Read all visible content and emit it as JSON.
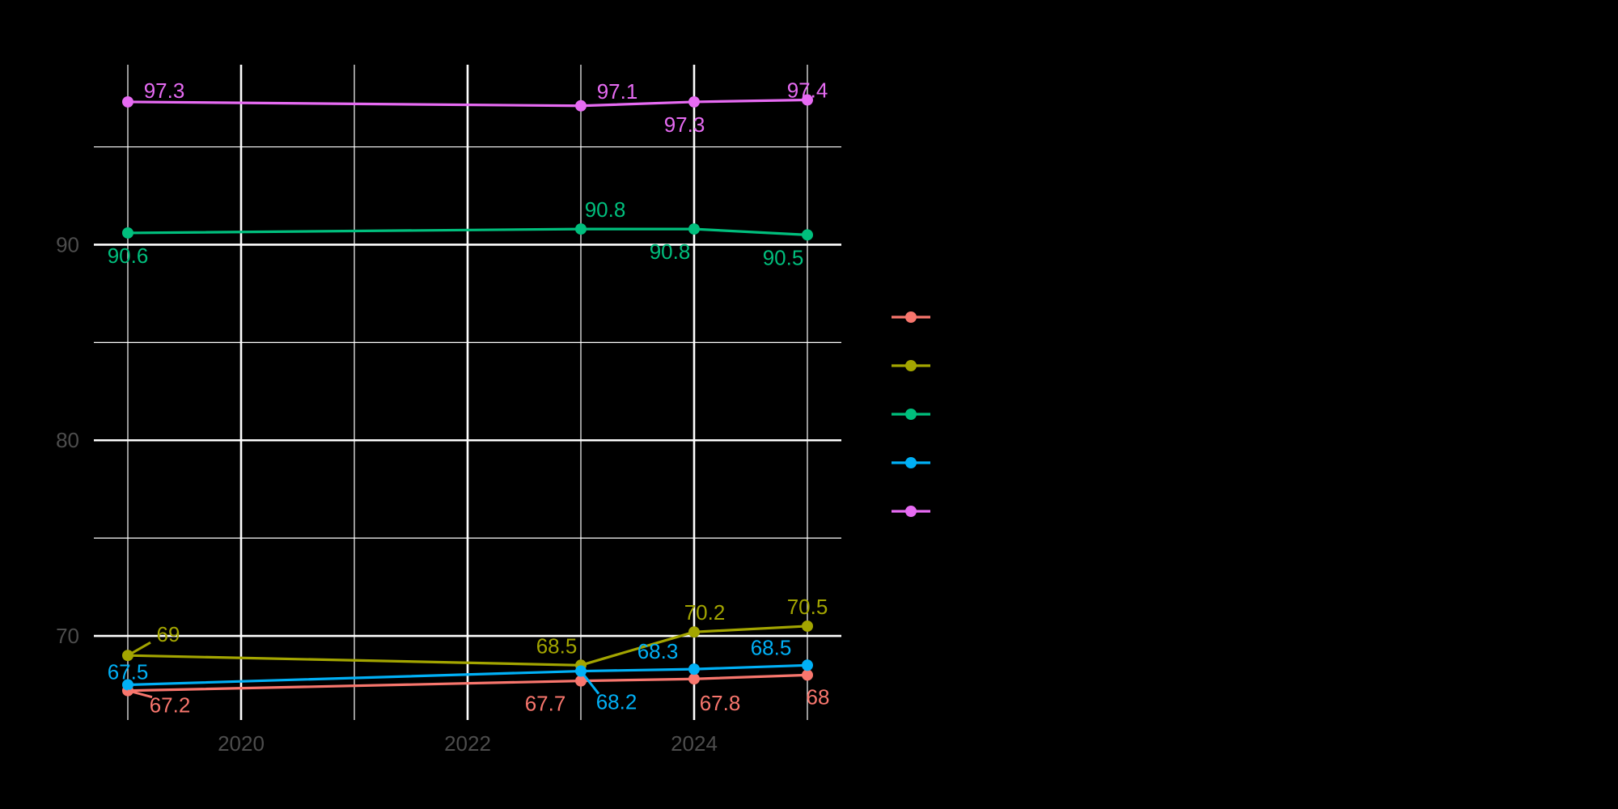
{
  "chart_data": {
    "type": "line",
    "title": "",
    "xlabel": "",
    "ylabel": "",
    "x": [
      2019,
      2023,
      2024,
      2025
    ],
    "xlim": [
      2018.7,
      2025.3
    ],
    "ylim": [
      65.7,
      99.2
    ],
    "x_ticks": [
      2020,
      2022,
      2024
    ],
    "x_tick_labels": [
      "2020",
      "2022",
      "2024"
    ],
    "x_minor_ticks": [
      2019,
      2021,
      2023,
      2025
    ],
    "y_ticks": [
      70,
      80,
      90
    ],
    "y_tick_labels": [
      "70",
      "80",
      "90"
    ],
    "y_minor_ticks": [
      75,
      85,
      95
    ],
    "grid": true,
    "legend": {
      "position": "right",
      "show_labels": false
    },
    "background": "#000000",
    "gridline_color": "#ffffff",
    "series": [
      {
        "color": "#F8766D",
        "values": [
          67.2,
          67.7,
          67.8,
          68.0
        ],
        "labels": [
          "67.2",
          "67.7",
          "67.8",
          "68"
        ]
      },
      {
        "color": "#A3A500",
        "values": [
          69.0,
          68.5,
          70.2,
          70.5
        ],
        "labels": [
          "69",
          "68.5",
          "70.2",
          "70.5"
        ]
      },
      {
        "color": "#00BF7D",
        "values": [
          90.6,
          90.8,
          90.8,
          90.5
        ],
        "labels": [
          "90.6",
          "90.8",
          "90.8",
          "90.5"
        ]
      },
      {
        "color": "#00B0F6",
        "values": [
          67.5,
          68.2,
          68.3,
          68.5
        ],
        "labels": [
          "67.5",
          "68.2",
          "68.3",
          "68.5"
        ]
      },
      {
        "color": "#E76BF3",
        "values": [
          97.3,
          97.1,
          97.3,
          97.4
        ],
        "labels": [
          "97.3",
          "97.1",
          "97.3",
          "97.4"
        ]
      }
    ]
  }
}
